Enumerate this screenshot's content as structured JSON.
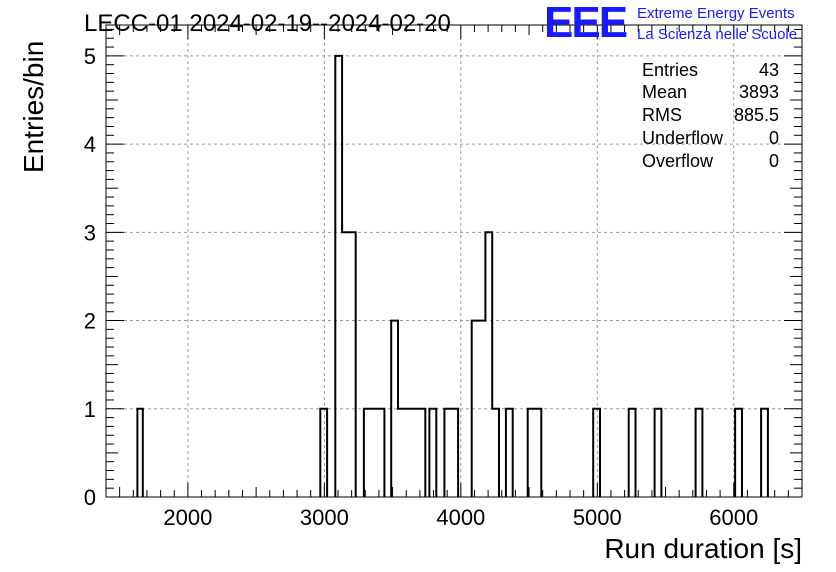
{
  "title": "LECC-01 2024-02-19--2024-02-20",
  "logo": {
    "letters": "EEE",
    "line1": "Extreme Energy Events",
    "line2": "La Scienza nelle Scuole"
  },
  "stats": [
    {
      "label": "Entries",
      "value": "43"
    },
    {
      "label": "Mean",
      "value": "3893"
    },
    {
      "label": "RMS",
      "value": "885.5"
    },
    {
      "label": "Underflow",
      "value": "0"
    },
    {
      "label": "Overflow",
      "value": "0"
    }
  ],
  "colors": {
    "line": "#000000",
    "grid": "#9a9a9a",
    "logo": "#1a1aff"
  },
  "chart_data": {
    "type": "bar",
    "style": "step-histogram",
    "xlabel": "Run duration [s]",
    "ylabel": "Entries/bin",
    "xlim": [
      1400,
      6500
    ],
    "ylim": [
      0,
      5.35
    ],
    "xticks": [
      2000,
      3000,
      4000,
      5000,
      6000
    ],
    "yticks": [
      0,
      1,
      2,
      3,
      4,
      5
    ],
    "grid": true,
    "bins": [
      {
        "x0": 1630,
        "x1": 1670,
        "value": 1
      },
      {
        "x0": 2970,
        "x1": 3020,
        "value": 1
      },
      {
        "x0": 3080,
        "x1": 3130,
        "value": 5
      },
      {
        "x0": 3130,
        "x1": 3230,
        "value": 3
      },
      {
        "x0": 3290,
        "x1": 3440,
        "value": 1
      },
      {
        "x0": 3490,
        "x1": 3540,
        "value": 2
      },
      {
        "x0": 3540,
        "x1": 3740,
        "value": 1
      },
      {
        "x0": 3770,
        "x1": 3820,
        "value": 1
      },
      {
        "x0": 3880,
        "x1": 3980,
        "value": 1
      },
      {
        "x0": 4080,
        "x1": 4180,
        "value": 2
      },
      {
        "x0": 4180,
        "x1": 4230,
        "value": 3
      },
      {
        "x0": 4230,
        "x1": 4280,
        "value": 1
      },
      {
        "x0": 4330,
        "x1": 4380,
        "value": 1
      },
      {
        "x0": 4490,
        "x1": 4590,
        "value": 1
      },
      {
        "x0": 4970,
        "x1": 5020,
        "value": 1
      },
      {
        "x0": 5230,
        "x1": 5280,
        "value": 1
      },
      {
        "x0": 5420,
        "x1": 5470,
        "value": 1
      },
      {
        "x0": 5720,
        "x1": 5770,
        "value": 1
      },
      {
        "x0": 6010,
        "x1": 6060,
        "value": 1
      },
      {
        "x0": 6200,
        "x1": 6250,
        "value": 1
      }
    ]
  }
}
